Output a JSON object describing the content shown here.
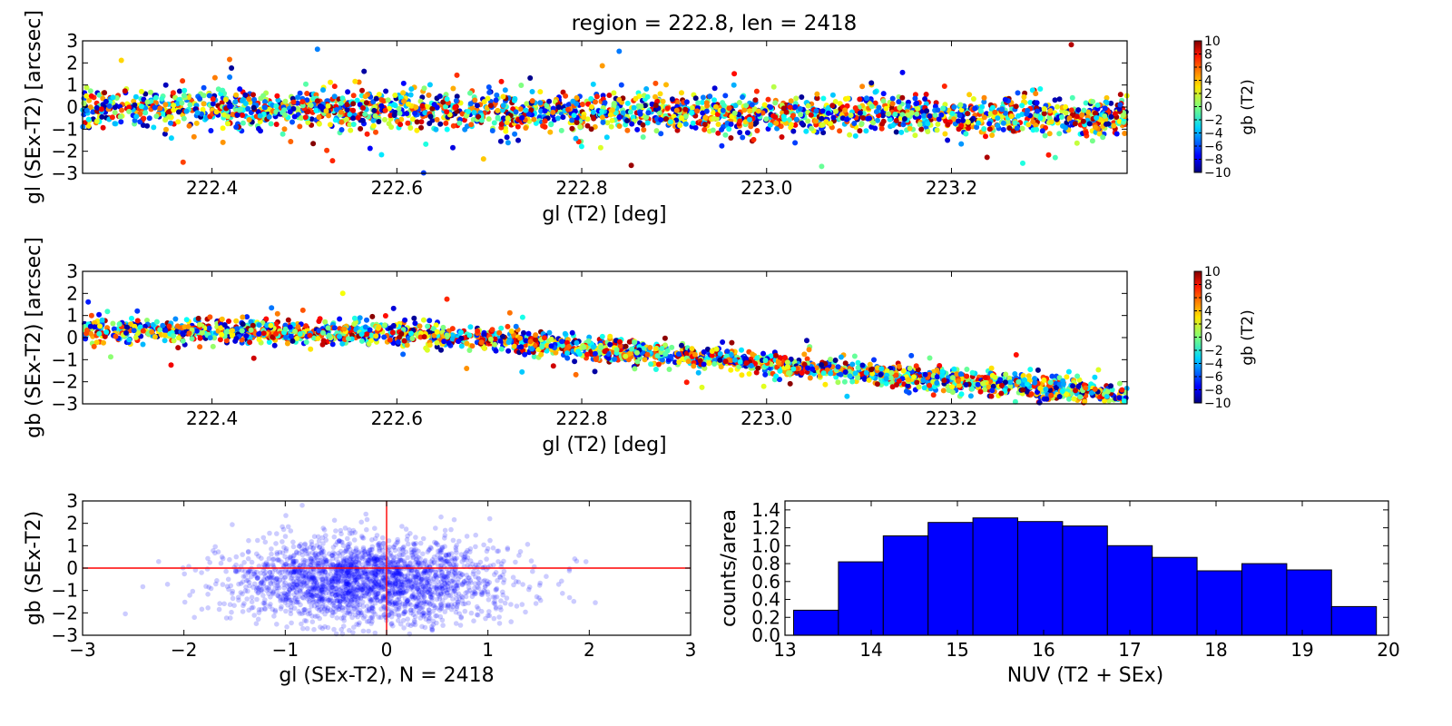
{
  "figure_title": "region = 222.8, len = 2418",
  "colors": {
    "histogram_fill": "#0000ff",
    "scatter_point": "#0000ff",
    "zero_lines": "#ff0000",
    "colormap": "jet"
  },
  "chart_data": [
    {
      "id": "top",
      "type": "scatter",
      "xlabel": "gl (T2) [deg]",
      "ylabel": "gl (SEx-T2) [arcsec]",
      "xlim": [
        222.26,
        223.39
      ],
      "ylim": [
        -3,
        3
      ],
      "xticks": [
        "222.4",
        "222.6",
        "222.8",
        "223.0",
        "223.2"
      ],
      "yticks": [
        "3",
        "2",
        "1",
        "0",
        "−1",
        "−2",
        "−3"
      ],
      "color_by": "gb (T2)",
      "n_points": 2418,
      "trend": {
        "x": [
          222.26,
          223.39
        ],
        "y": [
          0.0,
          -0.45
        ]
      },
      "spread": 0.75,
      "grid": false
    },
    {
      "id": "middle",
      "type": "scatter",
      "xlabel": "gl (T2) [deg]",
      "ylabel": "gb (SEx-T2) [arcsec]",
      "xlim": [
        222.26,
        223.39
      ],
      "ylim": [
        -3,
        3
      ],
      "xticks": [
        "222.4",
        "222.6",
        "222.8",
        "223.0",
        "223.2"
      ],
      "yticks": [
        "3",
        "2",
        "1",
        "0",
        "−1",
        "−2",
        "−3"
      ],
      "color_by": "gb (T2)",
      "n_points": 2418,
      "trend": {
        "x": [
          222.26,
          222.62,
          223.39
        ],
        "y": [
          0.35,
          0.2,
          -2.6
        ]
      },
      "spread": 0.45,
      "grid": false
    },
    {
      "id": "bottom-left",
      "type": "scatter",
      "xlabel": "gl (SEx-T2), N = 2418",
      "ylabel": "gb (SEx-T2)",
      "xlim": [
        -3,
        3
      ],
      "ylim": [
        -3,
        3
      ],
      "xticks": [
        "−3",
        "−2",
        "−1",
        "0",
        "1",
        "2",
        "3"
      ],
      "yticks": [
        "3",
        "2",
        "1",
        "0",
        "−1",
        "−2",
        "−3"
      ],
      "center": [
        -0.2,
        -0.6
      ],
      "spread": [
        0.65,
        0.95
      ],
      "reference_lines": {
        "x": 0,
        "y": 0
      },
      "n_points": 2418,
      "grid": false
    },
    {
      "id": "bottom-right",
      "type": "bar",
      "xlabel": "NUV (T2 + SEx)",
      "ylabel": "counts/area",
      "bin_edges": [
        13.1,
        13.62,
        14.14,
        14.66,
        15.18,
        15.7,
        16.22,
        16.74,
        17.26,
        17.78,
        18.3,
        18.82,
        19.34,
        19.86
      ],
      "values": [
        0.28,
        0.82,
        1.11,
        1.26,
        1.31,
        1.27,
        1.22,
        1.0,
        0.87,
        0.72,
        0.8,
        0.73,
        0.32
      ],
      "xlim": [
        13,
        20
      ],
      "ylim": [
        0,
        1.5
      ],
      "xticks": [
        "13",
        "14",
        "15",
        "16",
        "17",
        "18",
        "19",
        "20"
      ],
      "yticks": [
        "1.4",
        "1.2",
        "1.0",
        "0.8",
        "0.6",
        "0.4",
        "0.2",
        "0.0"
      ],
      "grid": false
    }
  ],
  "colorbars": [
    {
      "id": "cb1",
      "label": "gb (T2)",
      "range": [
        -10,
        10
      ],
      "ticks": [
        "10",
        "8",
        "6",
        "4",
        "2",
        "0",
        "−2",
        "−4",
        "−6",
        "−8",
        "−10"
      ]
    },
    {
      "id": "cb2",
      "label": "gb (T2)",
      "range": [
        -10,
        10
      ],
      "ticks": [
        "10",
        "8",
        "6",
        "4",
        "2",
        "0",
        "−2",
        "−4",
        "−6",
        "−8",
        "−10"
      ]
    }
  ]
}
